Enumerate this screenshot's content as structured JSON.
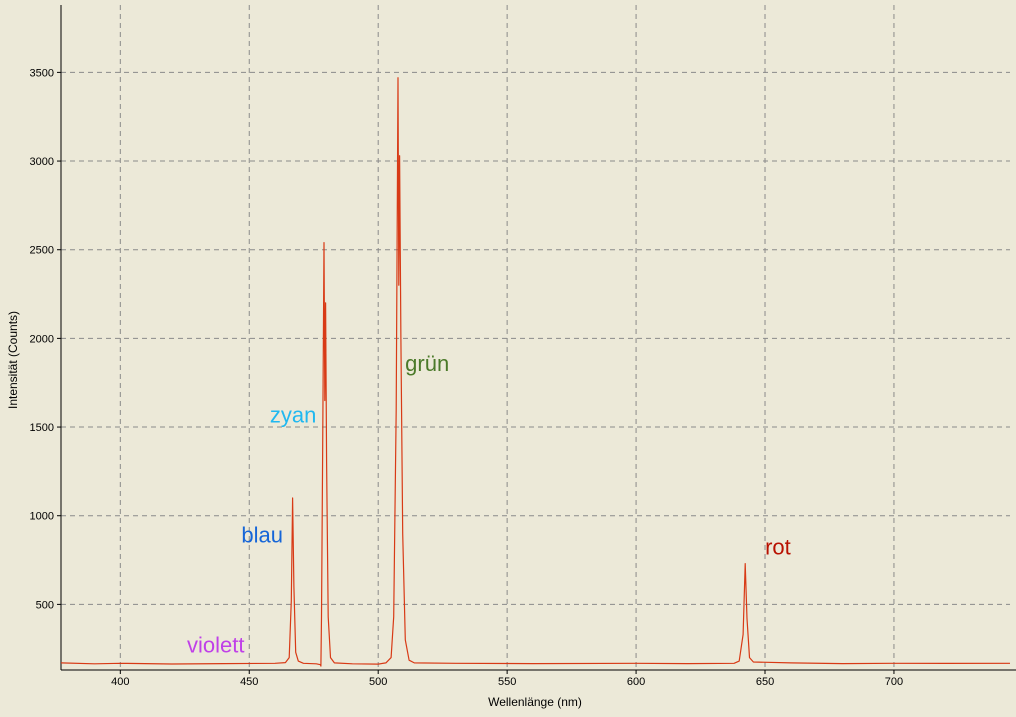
{
  "chart_data": {
    "type": "line",
    "title": "",
    "xlabel": "Wellenlänge (nm)",
    "ylabel": "Intensität (Counts)",
    "xlim": [
      377,
      745
    ],
    "ylim": [
      130,
      3880
    ],
    "grid": true,
    "x_ticks": [
      400,
      450,
      500,
      550,
      600,
      650,
      700
    ],
    "y_ticks": [
      500,
      1000,
      1500,
      2000,
      2500,
      3000,
      3500
    ],
    "series": [
      {
        "color": "#d83a16",
        "points": [
          [
            377,
            170
          ],
          [
            390,
            165
          ],
          [
            400,
            168
          ],
          [
            420,
            164
          ],
          [
            440,
            166
          ],
          [
            460,
            168
          ],
          [
            464,
            172
          ],
          [
            465.5,
            200
          ],
          [
            466.3,
            520
          ],
          [
            466.8,
            1100
          ],
          [
            467.3,
            600
          ],
          [
            468,
            230
          ],
          [
            469,
            180
          ],
          [
            471,
            168
          ],
          [
            476,
            165
          ],
          [
            477.6,
            160
          ],
          [
            477.8,
            152
          ],
          [
            478,
            430
          ],
          [
            478.5,
            1400
          ],
          [
            479,
            2540
          ],
          [
            479.3,
            1650
          ],
          [
            479.6,
            2200
          ],
          [
            480,
            1300
          ],
          [
            480.6,
            430
          ],
          [
            481.5,
            200
          ],
          [
            483,
            170
          ],
          [
            490,
            165
          ],
          [
            500,
            163
          ],
          [
            503,
            170
          ],
          [
            505,
            200
          ],
          [
            506,
            430
          ],
          [
            507,
            1600
          ],
          [
            507.7,
            3470
          ],
          [
            508,
            2300
          ],
          [
            508.3,
            3030
          ],
          [
            508.8,
            2000
          ],
          [
            509.5,
            900
          ],
          [
            510.5,
            300
          ],
          [
            512,
            185
          ],
          [
            514,
            170
          ],
          [
            530,
            168
          ],
          [
            560,
            166
          ],
          [
            600,
            168
          ],
          [
            620,
            166
          ],
          [
            638,
            168
          ],
          [
            640,
            180
          ],
          [
            641.5,
            330
          ],
          [
            642.3,
            730
          ],
          [
            643,
            420
          ],
          [
            644,
            200
          ],
          [
            645.5,
            175
          ],
          [
            660,
            170
          ],
          [
            680,
            166
          ],
          [
            700,
            168
          ],
          [
            720,
            167
          ],
          [
            745,
            168
          ]
        ]
      }
    ],
    "annotations": [
      {
        "text": "violett",
        "x": 437,
        "y": 230,
        "color": "#c040e8"
      },
      {
        "text": "blau",
        "x": 455,
        "y": 850,
        "color": "#1565d8"
      },
      {
        "text": "zyan",
        "x": 467,
        "y": 1525,
        "color": "#20b8f0"
      },
      {
        "text": "grün",
        "x": 519,
        "y": 1815,
        "color": "#4b7a2a"
      },
      {
        "text": "rot",
        "x": 655,
        "y": 780,
        "color": "#b81000"
      }
    ]
  }
}
